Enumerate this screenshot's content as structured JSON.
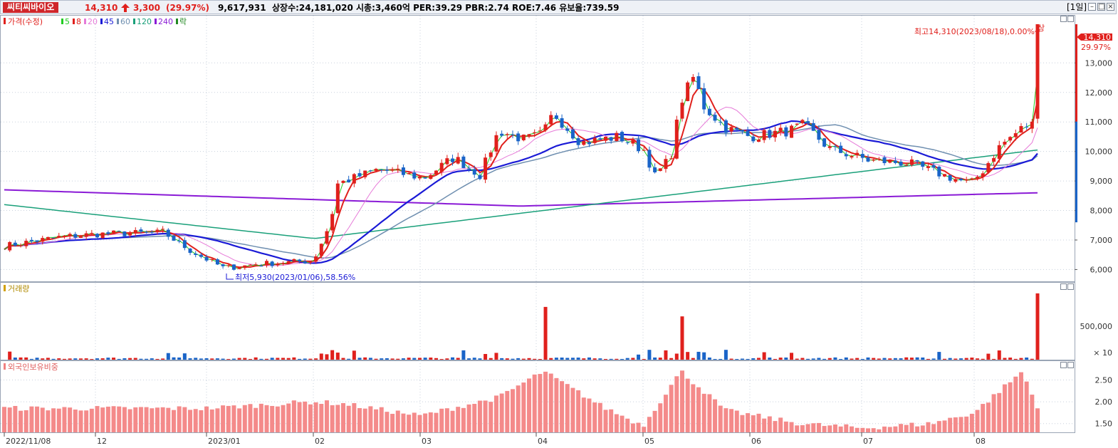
{
  "header": {
    "stock_name": "씨티씨바이오",
    "price": "14,310",
    "change_arrow": "up-arrow-icon",
    "change": "3,300",
    "change_pct": "(29.97%)",
    "volume": "9,617,931",
    "stats": "상장수:24,181,020 시총:3,460억 PER:39.29 PBR:2.74 ROE:7.46 유보율:739.59",
    "period": "[1일]",
    "window_buttons": [
      "minimize-icon",
      "maximize-icon",
      "close-icon"
    ]
  },
  "price_panel": {
    "legend_title": "가격(수정)",
    "legend_ma": [
      {
        "label": "5",
        "color": "#22cc22"
      },
      {
        "label": "8",
        "color": "#e0201c"
      },
      {
        "label": "20",
        "color": "#e67ad8"
      },
      {
        "label": "45",
        "color": "#1a1ad6"
      },
      {
        "label": "60",
        "color": "#6f8fb0"
      },
      {
        "label": "120",
        "color": "#1aa07a"
      },
      {
        "label": "240",
        "color": "#8a1ad6"
      },
      {
        "label": "락",
        "color": "#228822"
      }
    ],
    "high_label": "최고14,310(2023/08/18),0.00%",
    "upper_limit_mark": "상",
    "low_label": "최저5,930(2023/01/06),58.56%",
    "current_price_tag": "14,310",
    "current_pct_tag": "29.97%",
    "y_ticks": [
      "13,000",
      "12,000",
      "11,000",
      "10,000",
      "9,000",
      "8,000",
      "7,000",
      "6,000"
    ]
  },
  "volume_panel": {
    "legend": "거래량",
    "y_ticks": [
      "500,000"
    ],
    "unit": "× 10"
  },
  "foreign_panel": {
    "legend": "외국인보유비중",
    "y_ticks": [
      "2.50",
      "2.00",
      "1.50"
    ]
  },
  "x_axis": {
    "labels": [
      "2022/11/08",
      "12",
      "2023/01",
      "02",
      "03",
      "04",
      "05",
      "06",
      "07",
      "08"
    ]
  },
  "chart_data": {
    "type": "candlestick",
    "title": "씨티씨바이오",
    "period": "1D",
    "price_range": [
      5600,
      14600
    ],
    "volume_range": [
      0,
      1000000
    ],
    "foreign_ratio_range": [
      1.3,
      2.85
    ],
    "last_close": 14310,
    "prev_close": 11010,
    "period_high": {
      "value": 14310,
      "date": "2023/08/18"
    },
    "period_low": {
      "value": 5930,
      "date": "2023/01/06"
    },
    "price_keypoints": [
      {
        "x": "2022/11/08",
        "close": 6800
      },
      {
        "x": "2022/11/22",
        "close": 7100
      },
      {
        "x": "2022/12",
        "close": 7200
      },
      {
        "x": "2022/12/20",
        "close": 7250
      },
      {
        "x": "2022/12/28",
        "close": 6600
      },
      {
        "x": "2023/01/06",
        "close": 6050
      },
      {
        "x": "2023/01/18",
        "close": 6200
      },
      {
        "x": "2023/02/01",
        "close": 6300
      },
      {
        "x": "2023/02/06",
        "close": 7600
      },
      {
        "x": "2023/02/08",
        "close": 8900
      },
      {
        "x": "2023/02/20",
        "close": 9400
      },
      {
        "x": "2023/03/02",
        "close": 9100
      },
      {
        "x": "2023/03/10",
        "close": 9800
      },
      {
        "x": "2023/03/17",
        "close": 9200
      },
      {
        "x": "2023/03/22",
        "close": 10700
      },
      {
        "x": "2023/03/29",
        "close": 10400
      },
      {
        "x": "2023/04/03",
        "close": 10600
      },
      {
        "x": "2023/04/06",
        "close": 11300
      },
      {
        "x": "2023/04/14",
        "close": 10300
      },
      {
        "x": "2023/04/25",
        "close": 10500
      },
      {
        "x": "2023/05/02",
        "close": 10000
      },
      {
        "x": "2023/05/04",
        "close": 9100
      },
      {
        "x": "2023/05/09",
        "close": 9800
      },
      {
        "x": "2023/05/12",
        "close": 11700
      },
      {
        "x": "2023/05/16",
        "close": 12600
      },
      {
        "x": "2023/05/18",
        "close": 11600
      },
      {
        "x": "2023/05/25",
        "close": 10800
      },
      {
        "x": "2023/06/01",
        "close": 10500
      },
      {
        "x": "2023/06/12",
        "close": 10700
      },
      {
        "x": "2023/06/16",
        "close": 10900
      },
      {
        "x": "2023/06/23",
        "close": 10100
      },
      {
        "x": "2023/07/03",
        "close": 9700
      },
      {
        "x": "2023/07/14",
        "close": 9600
      },
      {
        "x": "2023/07/26",
        "close": 9100
      },
      {
        "x": "2023/07/31",
        "close": 8900
      },
      {
        "x": "2023/08/03",
        "close": 9300
      },
      {
        "x": "2023/08/08",
        "close": 10200
      },
      {
        "x": "2023/08/14",
        "close": 10800
      },
      {
        "x": "2023/08/17",
        "close": 11010
      },
      {
        "x": "2023/08/18",
        "close": 14310
      }
    ],
    "ma_240": {
      "start": 8700,
      "mid": 8150,
      "end": 8600
    },
    "ma_120": {
      "start": 8200,
      "min": 7050,
      "end": 10050
    },
    "ma_45": {
      "start": 7100,
      "min": 6600,
      "end": 9850
    },
    "last_volume": 9617931,
    "volume_spikes": [
      {
        "x": "2023/04/03",
        "value": 780000
      },
      {
        "x": "2023/05/12",
        "value": 640000
      },
      {
        "x": "2023/08/18",
        "value": 9617931
      }
    ],
    "foreign_ratio_keypoints": [
      {
        "x": "2022/11/08",
        "value": 1.85
      },
      {
        "x": "2022/12",
        "value": 1.85
      },
      {
        "x": "2023/01",
        "value": 1.85
      },
      {
        "x": "2023/02/01",
        "value": 2.0
      },
      {
        "x": "2023/02/10",
        "value": 1.95
      },
      {
        "x": "2023/03/01",
        "value": 1.68
      },
      {
        "x": "2023/03/22",
        "value": 2.1
      },
      {
        "x": "2023/04/03",
        "value": 2.7
      },
      {
        "x": "2023/04/20",
        "value": 1.9
      },
      {
        "x": "2023/05/01",
        "value": 1.45
      },
      {
        "x": "2023/05/12",
        "value": 2.7
      },
      {
        "x": "2023/05/25",
        "value": 1.8
      },
      {
        "x": "2023/06/15",
        "value": 1.5
      },
      {
        "x": "2023/07/01",
        "value": 1.4
      },
      {
        "x": "2023/07/20",
        "value": 1.5
      },
      {
        "x": "2023/08/01",
        "value": 1.75
      },
      {
        "x": "2023/08/14",
        "value": 2.7
      },
      {
        "x": "2023/08/18",
        "value": 1.85
      }
    ]
  }
}
